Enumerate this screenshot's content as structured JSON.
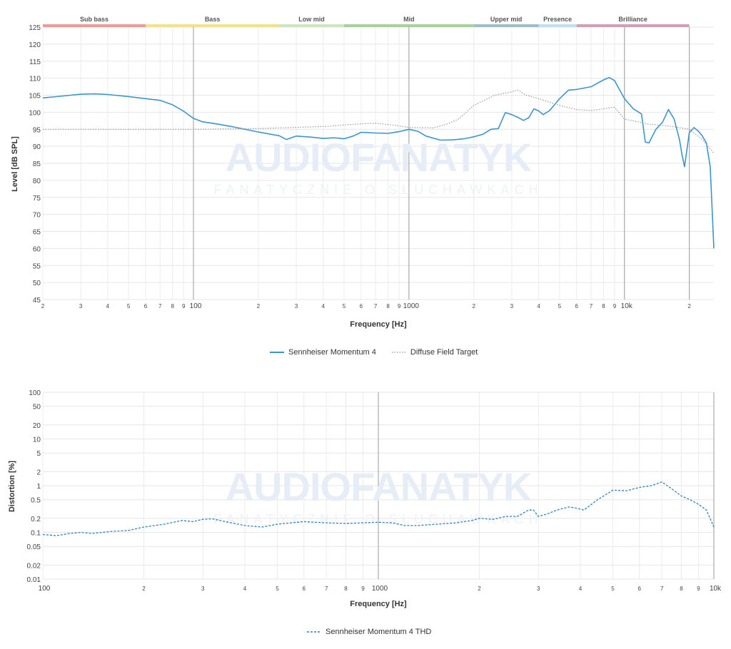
{
  "watermark": {
    "text": "AUDIOFANATYK",
    "subtext": "FANATYCZNIE O SŁUCHAWKACH"
  },
  "chart_data": [
    {
      "type": "line",
      "xscale": "log",
      "xlabel": "Frequency [Hz]",
      "ylabel": "Level [dB SPL]",
      "xlim": [
        20,
        20000
      ],
      "ylim": [
        45,
        125
      ],
      "yticks": [
        45,
        50,
        55,
        60,
        65,
        70,
        75,
        80,
        85,
        90,
        95,
        100,
        105,
        110,
        115,
        120,
        125
      ],
      "xtick_labels": [
        {
          "x": 20,
          "label": "2"
        },
        {
          "x": 30,
          "label": "3"
        },
        {
          "x": 40,
          "label": "4"
        },
        {
          "x": 50,
          "label": "5"
        },
        {
          "x": 60,
          "label": "6"
        },
        {
          "x": 70,
          "label": "7"
        },
        {
          "x": 80,
          "label": "8"
        },
        {
          "x": 90,
          "label": "9"
        },
        {
          "x": 100,
          "label": "100"
        },
        {
          "x": 200,
          "label": "2"
        },
        {
          "x": 300,
          "label": "3"
        },
        {
          "x": 400,
          "label": "4"
        },
        {
          "x": 500,
          "label": "5"
        },
        {
          "x": 600,
          "label": "6"
        },
        {
          "x": 700,
          "label": "7"
        },
        {
          "x": 800,
          "label": "8"
        },
        {
          "x": 900,
          "label": "9"
        },
        {
          "x": 1000,
          "label": "1000"
        },
        {
          "x": 2000,
          "label": "2"
        },
        {
          "x": 3000,
          "label": "3"
        },
        {
          "x": 4000,
          "label": "4"
        },
        {
          "x": 5000,
          "label": "5"
        },
        {
          "x": 6000,
          "label": "6"
        },
        {
          "x": 7000,
          "label": "7"
        },
        {
          "x": 8000,
          "label": "8"
        },
        {
          "x": 9000,
          "label": "9"
        },
        {
          "x": 10000,
          "label": "10k"
        },
        {
          "x": 20000,
          "label": "2"
        }
      ],
      "major_lines": [
        100,
        1000,
        10000,
        20000
      ],
      "grid": true,
      "bands": [
        {
          "name": "Sub bass",
          "from": 20,
          "to": 60,
          "color": "#ef9a9a"
        },
        {
          "name": "Bass",
          "from": 60,
          "to": 250,
          "color": "#f3e28c"
        },
        {
          "name": "Low mid",
          "from": 250,
          "to": 500,
          "color": "#cde5c4"
        },
        {
          "name": "Mid",
          "from": 500,
          "to": 2000,
          "color": "#a9cf9f"
        },
        {
          "name": "Upper mid",
          "from": 2000,
          "to": 4000,
          "color": "#9fbfc6"
        },
        {
          "name": "Presence",
          "from": 4000,
          "to": 6000,
          "color": "#c6dcf0"
        },
        {
          "name": "Brilliance",
          "from": 6000,
          "to": 20000,
          "color": "#cf9fb6"
        }
      ],
      "legend_placement": "bottom-center",
      "series": [
        {
          "name": "Sennheiser Momentum 4",
          "color": "#3b95d0",
          "style": "solid",
          "points": [
            [
              20,
              104.2
            ],
            [
              25,
              104.8
            ],
            [
              30,
              105.3
            ],
            [
              35,
              105.4
            ],
            [
              40,
              105.2
            ],
            [
              50,
              104.6
            ],
            [
              60,
              104.0
            ],
            [
              70,
              103.5
            ],
            [
              80,
              102.2
            ],
            [
              90,
              100.3
            ],
            [
              100,
              98.2
            ],
            [
              110,
              97.2
            ],
            [
              130,
              96.5
            ],
            [
              150,
              95.8
            ],
            [
              200,
              94.2
            ],
            [
              250,
              93.1
            ],
            [
              270,
              92.0
            ],
            [
              300,
              93.0
            ],
            [
              350,
              92.7
            ],
            [
              400,
              92.3
            ],
            [
              450,
              92.5
            ],
            [
              500,
              92.2
            ],
            [
              550,
              93.0
            ],
            [
              600,
              94.1
            ],
            [
              700,
              93.9
            ],
            [
              800,
              93.8
            ],
            [
              900,
              94.3
            ],
            [
              1000,
              95.0
            ],
            [
              1100,
              94.4
            ],
            [
              1200,
              93.0
            ],
            [
              1400,
              91.8
            ],
            [
              1600,
              91.9
            ],
            [
              1800,
              92.2
            ],
            [
              2000,
              92.8
            ],
            [
              2200,
              93.5
            ],
            [
              2400,
              95.0
            ],
            [
              2600,
              95.2
            ],
            [
              2800,
              99.9
            ],
            [
              3000,
              99.3
            ],
            [
              3200,
              98.5
            ],
            [
              3400,
              97.6
            ],
            [
              3600,
              98.4
            ],
            [
              3800,
              101.0
            ],
            [
              4000,
              100.4
            ],
            [
              4200,
              99.3
            ],
            [
              4500,
              100.5
            ],
            [
              5000,
              104.0
            ],
            [
              5500,
              106.5
            ],
            [
              6000,
              106.7
            ],
            [
              7000,
              107.5
            ],
            [
              8000,
              109.5
            ],
            [
              8500,
              110.2
            ],
            [
              9000,
              109.3
            ],
            [
              10000,
              104.0
            ],
            [
              11000,
              101.0
            ],
            [
              12000,
              99.5
            ],
            [
              12500,
              91.2
            ],
            [
              13000,
              91.0
            ],
            [
              14000,
              95.0
            ],
            [
              15000,
              97.0
            ],
            [
              16000,
              100.8
            ],
            [
              17000,
              98.0
            ],
            [
              18000,
              92.0
            ],
            [
              18500,
              87.5
            ],
            [
              19000,
              84.0
            ],
            [
              20000,
              94.0
            ],
            [
              21000,
              95.5
            ],
            [
              22000,
              94.5
            ],
            [
              23000,
              93.0
            ],
            [
              24000,
              91.0
            ],
            [
              25000,
              84.0
            ],
            [
              26000,
              60.0
            ]
          ]
        },
        {
          "name": "Diffuse Field Target",
          "color": "#999999",
          "style": "dotted",
          "points": [
            [
              20,
              95.0
            ],
            [
              100,
              95.0
            ],
            [
              200,
              95.2
            ],
            [
              400,
              95.8
            ],
            [
              600,
              96.6
            ],
            [
              700,
              96.8
            ],
            [
              900,
              96.0
            ],
            [
              1000,
              95.5
            ],
            [
              1300,
              95.4
            ],
            [
              1500,
              96.5
            ],
            [
              1700,
              98.0
            ],
            [
              2000,
              102.0
            ],
            [
              2500,
              105.0
            ],
            [
              3000,
              106.0
            ],
            [
              3200,
              106.5
            ],
            [
              3500,
              105.0
            ],
            [
              4000,
              104.0
            ],
            [
              5000,
              102.0
            ],
            [
              6000,
              100.8
            ],
            [
              7000,
              100.5
            ],
            [
              8000,
              101.0
            ],
            [
              9000,
              101.5
            ],
            [
              10000,
              98.0
            ],
            [
              13000,
              96.5
            ],
            [
              16000,
              96.0
            ],
            [
              20000,
              95.0
            ],
            [
              23000,
              92.0
            ],
            [
              26000,
              88.0
            ]
          ]
        }
      ]
    },
    {
      "type": "line",
      "xscale": "log",
      "yscale": "log",
      "xlabel": "Frequency [Hz]",
      "ylabel": "Distortion [%]",
      "xlim": [
        100,
        10000
      ],
      "ylim": [
        0.01,
        100
      ],
      "ytick_labels": [
        {
          "y": 100,
          "label": "100"
        },
        {
          "y": 50,
          "label": "50"
        },
        {
          "y": 20,
          "label": "20"
        },
        {
          "y": 10,
          "label": "10"
        },
        {
          "y": 5,
          "label": "5"
        },
        {
          "y": 2,
          "label": "2"
        },
        {
          "y": 1,
          "label": "1"
        },
        {
          "y": 0.5,
          "label": "0.5"
        },
        {
          "y": 0.2,
          "label": "0.2"
        },
        {
          "y": 0.1,
          "label": "0.1"
        },
        {
          "y": 0.05,
          "label": "0.05"
        },
        {
          "y": 0.02,
          "label": "0.02"
        },
        {
          "y": 0.01,
          "label": "0.01"
        }
      ],
      "xtick_labels": [
        {
          "x": 100,
          "label": "100"
        },
        {
          "x": 200,
          "label": "2"
        },
        {
          "x": 300,
          "label": "3"
        },
        {
          "x": 400,
          "label": "4"
        },
        {
          "x": 500,
          "label": "5"
        },
        {
          "x": 600,
          "label": "6"
        },
        {
          "x": 700,
          "label": "7"
        },
        {
          "x": 800,
          "label": "8"
        },
        {
          "x": 900,
          "label": "9"
        },
        {
          "x": 1000,
          "label": "1000"
        },
        {
          "x": 2000,
          "label": "2"
        },
        {
          "x": 3000,
          "label": "3"
        },
        {
          "x": 4000,
          "label": "4"
        },
        {
          "x": 5000,
          "label": "5"
        },
        {
          "x": 6000,
          "label": "6"
        },
        {
          "x": 7000,
          "label": "7"
        },
        {
          "x": 8000,
          "label": "8"
        },
        {
          "x": 9000,
          "label": "9"
        },
        {
          "x": 10000,
          "label": "10k"
        }
      ],
      "major_lines": [
        1000,
        10000
      ],
      "grid": true,
      "legend_placement": "bottom-center",
      "series": [
        {
          "name": "Sennheiser Momentum 4 THD",
          "color": "#2f7fc2",
          "style": "dashed",
          "points": [
            [
              100,
              0.09
            ],
            [
              110,
              0.085
            ],
            [
              120,
              0.095
            ],
            [
              130,
              0.1
            ],
            [
              140,
              0.095
            ],
            [
              160,
              0.105
            ],
            [
              180,
              0.11
            ],
            [
              200,
              0.13
            ],
            [
              230,
              0.15
            ],
            [
              260,
              0.18
            ],
            [
              280,
              0.17
            ],
            [
              300,
              0.19
            ],
            [
              320,
              0.195
            ],
            [
              350,
              0.17
            ],
            [
              400,
              0.14
            ],
            [
              450,
              0.13
            ],
            [
              500,
              0.15
            ],
            [
              550,
              0.16
            ],
            [
              600,
              0.17
            ],
            [
              700,
              0.16
            ],
            [
              800,
              0.155
            ],
            [
              900,
              0.16
            ],
            [
              1000,
              0.165
            ],
            [
              1100,
              0.16
            ],
            [
              1200,
              0.14
            ],
            [
              1300,
              0.14
            ],
            [
              1500,
              0.15
            ],
            [
              1700,
              0.16
            ],
            [
              1900,
              0.18
            ],
            [
              2000,
              0.2
            ],
            [
              2200,
              0.19
            ],
            [
              2400,
              0.22
            ],
            [
              2600,
              0.22
            ],
            [
              2800,
              0.3
            ],
            [
              2900,
              0.3
            ],
            [
              3000,
              0.22
            ],
            [
              3200,
              0.25
            ],
            [
              3400,
              0.3
            ],
            [
              3700,
              0.35
            ],
            [
              3900,
              0.33
            ],
            [
              4100,
              0.3
            ],
            [
              4500,
              0.5
            ],
            [
              5000,
              0.8
            ],
            [
              5500,
              0.78
            ],
            [
              6000,
              0.92
            ],
            [
              6500,
              1.0
            ],
            [
              7000,
              1.2
            ],
            [
              7500,
              0.85
            ],
            [
              8000,
              0.6
            ],
            [
              8500,
              0.5
            ],
            [
              9000,
              0.4
            ],
            [
              9500,
              0.3
            ],
            [
              10000,
              0.13
            ]
          ]
        }
      ]
    }
  ]
}
